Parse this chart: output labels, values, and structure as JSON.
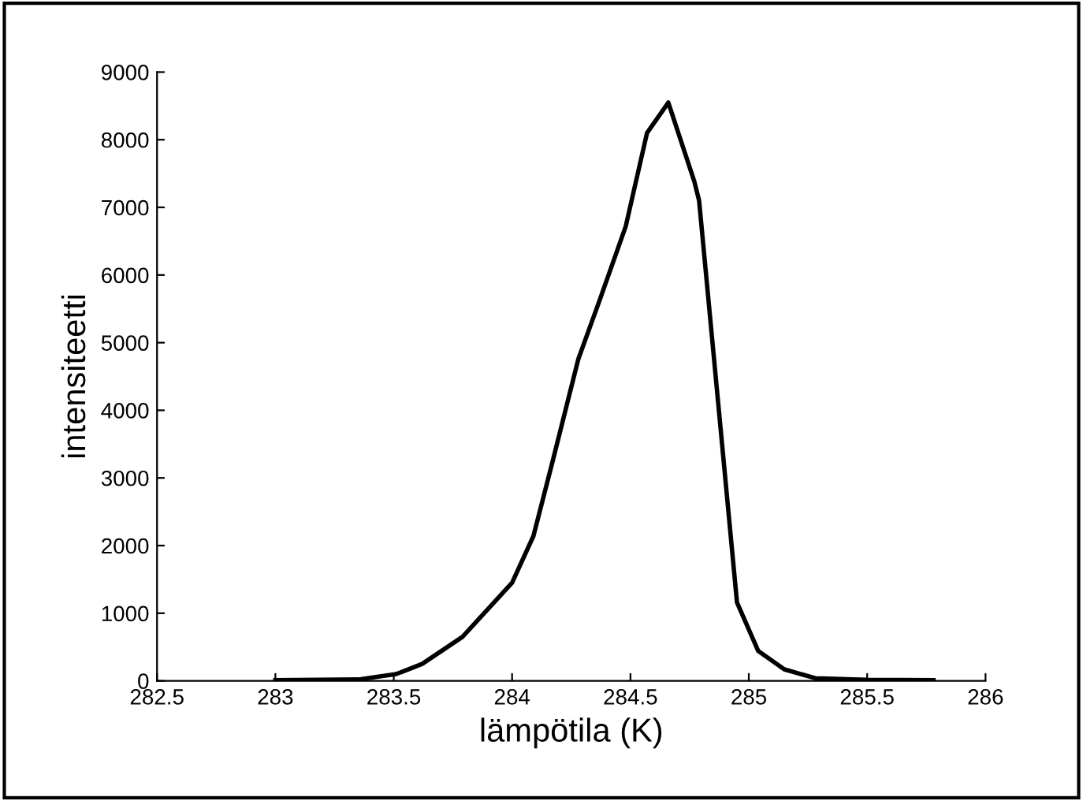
{
  "chart_data": {
    "type": "line",
    "xlabel": "lämpötila (K)",
    "ylabel": "intensiteetti",
    "x": [
      283.0,
      283.35,
      283.51,
      283.62,
      283.79,
      284.0,
      284.09,
      284.17,
      284.28,
      284.37,
      284.48,
      284.57,
      284.66,
      284.77,
      284.79,
      284.95,
      285.04,
      285.15,
      285.28,
      285.5,
      285.78
    ],
    "series": [
      {
        "color": "#000000",
        "values": [
          10,
          20,
          100,
          250,
          650,
          1450,
          2140,
          3230,
          4760,
          5630,
          6720,
          8100,
          8550,
          7380,
          7100,
          1160,
          440,
          170,
          40,
          15,
          10
        ]
      }
    ],
    "xlim": [
      282.5,
      286
    ],
    "xticks": [
      282.5,
      283,
      283.5,
      284,
      284.5,
      285,
      285.5,
      286
    ],
    "ylim": [
      0,
      9000
    ],
    "yticks": [
      0,
      1000,
      2000,
      3000,
      4000,
      5000,
      6000,
      7000,
      8000,
      9000
    ],
    "grid": false,
    "legend": false,
    "marker": "none",
    "line_style": "solid"
  }
}
